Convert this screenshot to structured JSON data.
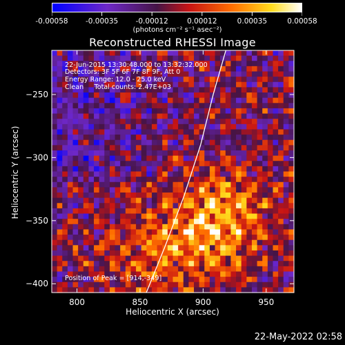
{
  "colorbar": {
    "tick_labels": [
      "-0.00058",
      "-0.00035",
      "-0.00012",
      "0.00012",
      "0.00035",
      "0.00058"
    ],
    "units_label": "(photons cm⁻² s⁻¹ asec⁻²)"
  },
  "title": "Reconstructed RHESSI Image",
  "info": {
    "time_range": "22-Jun-2015 13:30:48.000 to 13:32:32.000",
    "detectors": "Detectors: 3F 5F 6F 7F 8F 9F, Att 0",
    "energy": "Energy Range: 12.0 - 25.0 keV",
    "clean": "Clean     Total counts: 2.47E+03",
    "peak": "Position of Peak = [914,-349]"
  },
  "timestamp": "22-May-2022 02:58",
  "chart_data": {
    "type": "heatmap",
    "title": "Reconstructed RHESSI Image",
    "xlabel": "Heliocentric X (arcsec)",
    "ylabel": "Heliocentric Y (arcsec)",
    "xlim": [
      780,
      972
    ],
    "ylim": [
      -407,
      -215
    ],
    "xticks": [
      800,
      850,
      900,
      950
    ],
    "yticks": [
      -250,
      -300,
      -350,
      -400
    ],
    "colorbar_range": [
      -0.00058,
      0.00058
    ],
    "colormap": "blue-purple-red-yellow-white",
    "peak_position": [
      914,
      -349
    ],
    "limb_curve": [
      [
        855,
        -407
      ],
      [
        870,
        -370
      ],
      [
        885,
        -330
      ],
      [
        898,
        -290
      ],
      [
        908,
        -250
      ],
      [
        918,
        -215
      ]
    ],
    "grid": false
  }
}
